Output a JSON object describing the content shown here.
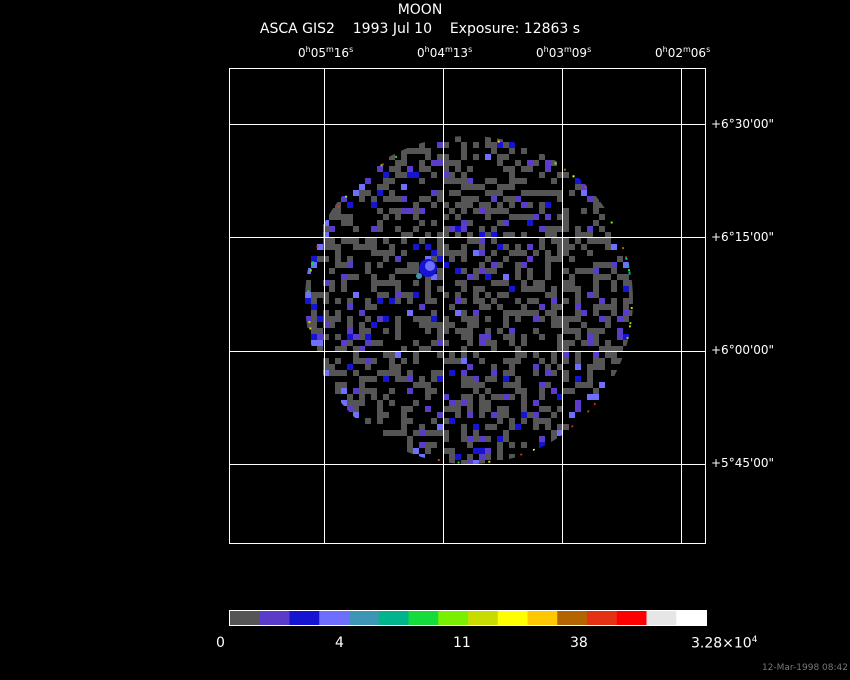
{
  "title": "MOON",
  "subtitle": {
    "instrument": "ASCA GIS2",
    "date": "1993 Jul 10",
    "exposure": "Exposure: 12863 s"
  },
  "ra_ticks": [
    {
      "h": "0",
      "m": "05",
      "s": "16"
    },
    {
      "h": "0",
      "m": "04",
      "s": "13"
    },
    {
      "h": "0",
      "m": "03",
      "s": "09"
    },
    {
      "h": "0",
      "m": "02",
      "s": "06"
    }
  ],
  "dec_ticks": [
    "+6°30'00\"",
    "+6°15'00\"",
    "+6°00'00\"",
    "+5°45'00\""
  ],
  "colorbar": {
    "labels": [
      "0",
      "4",
      "11",
      "38",
      "3.28×10"
    ],
    "max_exponent": "4",
    "colors": [
      "#555555",
      "#5a3cc8",
      "#1414d2",
      "#6e6eff",
      "#3c96b4",
      "#00b48c",
      "#14dc3c",
      "#78f000",
      "#c8dc00",
      "#ffff00",
      "#ffc800",
      "#b46400",
      "#e63214",
      "#ff0000",
      "#e6e6e6",
      "#ffffff"
    ]
  },
  "timestamp": "12-Mar-1998 08:42"
}
